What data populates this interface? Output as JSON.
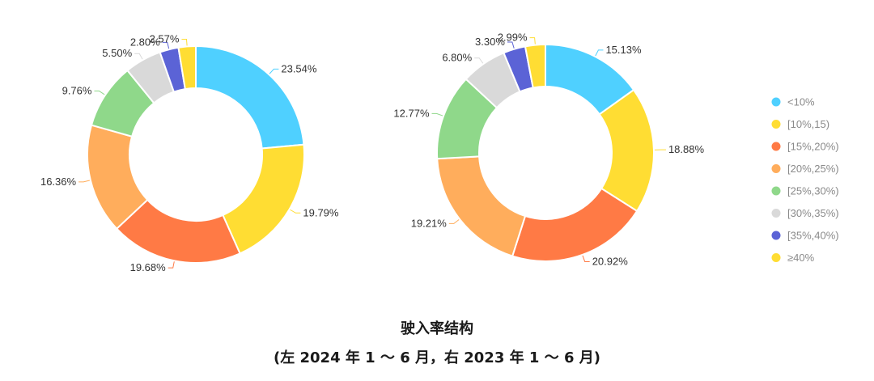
{
  "chart_data": [
    {
      "type": "pie",
      "title": "",
      "categories": [
        "<10%",
        "[10%,15)",
        "[15%,20%)",
        "[20%,25%)",
        "[25%,30%)",
        "[30%,35%)",
        "[35%,40%)",
        "≥40%"
      ],
      "values": [
        23.54,
        19.79,
        19.68,
        16.36,
        9.76,
        5.5,
        2.8,
        2.57
      ],
      "labels": [
        "23.54%",
        "19.79%",
        "19.68%",
        "16.36%",
        "9.76%",
        "5.50%",
        "2.80%",
        "2.57%"
      ]
    },
    {
      "type": "pie",
      "title": "",
      "categories": [
        "<10%",
        "[10%,15)",
        "[15%,20%)",
        "[20%,25%)",
        "[25%,30%)",
        "[30%,35%)",
        "[35%,40%)",
        "≥40%"
      ],
      "values": [
        15.13,
        18.88,
        20.92,
        19.21,
        12.77,
        6.8,
        3.3,
        2.99
      ],
      "labels": [
        "15.13%",
        "18.88%",
        "20.92%",
        "19.21%",
        "12.77%",
        "6.80%",
        "3.30%",
        "2.99%"
      ]
    }
  ],
  "legend": {
    "placement": "right",
    "items": [
      {
        "label": "<10%",
        "color": "#4fd0ff"
      },
      {
        "label": "[10%,15)",
        "color": "#ffdd33"
      },
      {
        "label": "[15%,20%)",
        "color": "#ff7a45"
      },
      {
        "label": "[20%,25%)",
        "color": "#ffad5c"
      },
      {
        "label": "[25%,30%)",
        "color": "#8fd88a"
      },
      {
        "label": "[30%,35%)",
        "color": "#d9d9d9"
      },
      {
        "label": "[35%,40%)",
        "color": "#5b63d6"
      },
      {
        "label": "≥40%",
        "color": "#ffdd33"
      }
    ]
  },
  "caption": {
    "title": "驶入率结构",
    "subtitle": "(左 2024 年 1 ～ 6 月，右 2023 年 1 ～ 6 月)"
  }
}
